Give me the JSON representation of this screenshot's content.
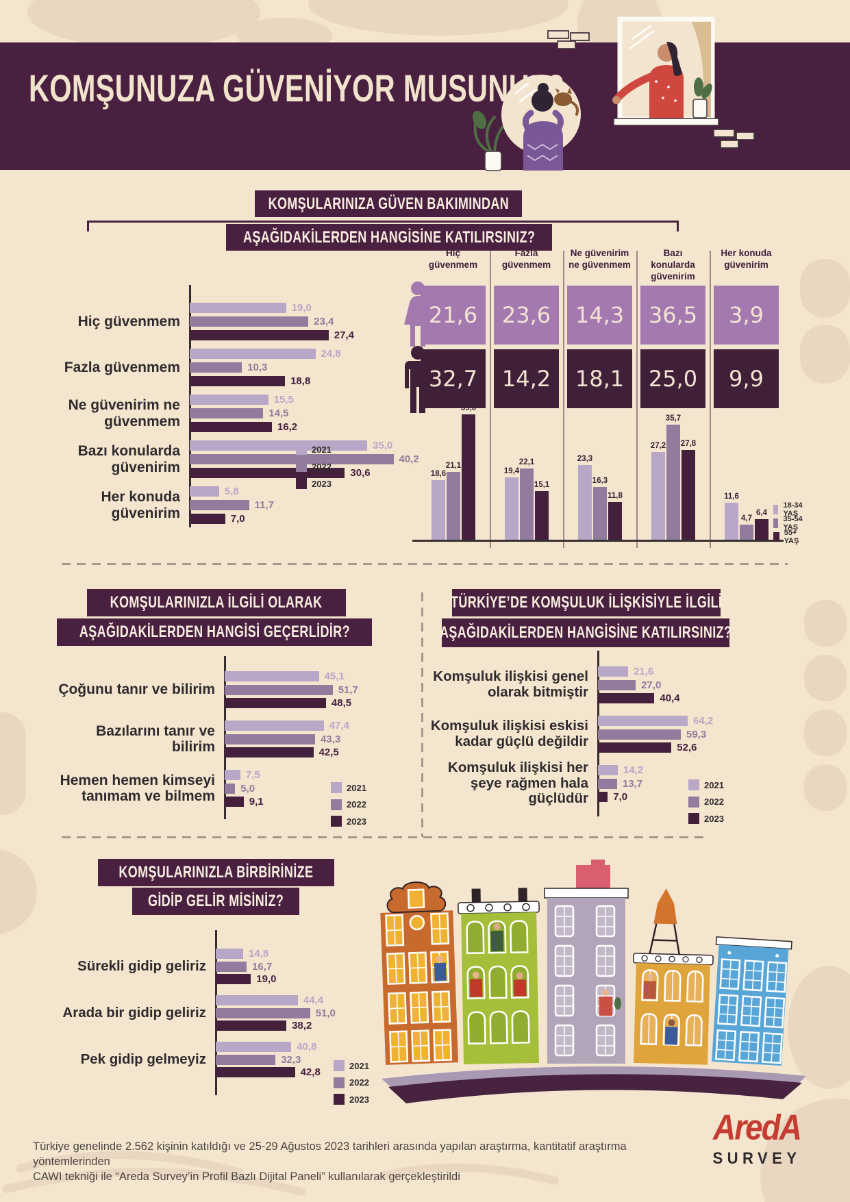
{
  "header": {
    "title": "KOMŞUNUZA GÜVENİYOR MUSUNUZ?"
  },
  "colors": {
    "background": "#f4e5cf",
    "decor_shape": "#e9d7c1",
    "band": "#49203f",
    "series": [
      "#b8a7c7",
      "#927b9c",
      "#44203d"
    ],
    "female": "#a379b0",
    "male": "#402038",
    "cream": "#f2e4d2",
    "text_dark": "#2f2b2d",
    "logo_red": "#c53c31"
  },
  "legend_years": [
    "2021",
    "2022",
    "2023"
  ],
  "age_legend": [
    "18-34 YAŞ",
    "35-54 YAŞ",
    "55+ YAŞ"
  ],
  "gender_rows": [
    "Kadın",
    "Erkek"
  ],
  "chart_data": [
    {
      "id": "trust-by-year",
      "type": "bar",
      "orientation": "horizontal",
      "title_lines": [
        "KOMŞULARINIZA GÜVEN BAKIMINDAN",
        "AŞAĞIDAKİLERDEN HANGİSİNE KATILIRSINIZ?"
      ],
      "categories": [
        "Hiç güvenmem",
        "Fazla güvenmem",
        "Ne güvenirim ne güvenmem",
        "Bazı konularda güvenirim",
        "Her konuda güvenirim"
      ],
      "series": [
        {
          "name": "2021",
          "values": [
            19.0,
            24.8,
            15.5,
            35.0,
            5.8
          ]
        },
        {
          "name": "2022",
          "values": [
            23.4,
            10.3,
            14.5,
            40.2,
            11.7
          ]
        },
        {
          "name": "2023",
          "values": [
            27.4,
            18.8,
            16.2,
            30.6,
            7.0
          ]
        }
      ],
      "unit": "percent",
      "xlim": [
        0,
        45
      ],
      "legend_position": "bottom-right"
    },
    {
      "id": "trust-by-gender",
      "type": "table",
      "columns": [
        "Hiç güvenmem",
        "Fazla güvenmem",
        "Ne güvenirim ne güvenmem",
        "Bazı konularda güvenirim",
        "Her konuda güvenirim"
      ],
      "rows": [
        {
          "label": "Kadın",
          "values": [
            21.6,
            23.6,
            14.3,
            36.5,
            3.9
          ]
        },
        {
          "label": "Erkek",
          "values": [
            32.7,
            14.2,
            18.1,
            25.0,
            9.9
          ]
        }
      ],
      "unit": "percent"
    },
    {
      "id": "trust-by-age",
      "type": "bar",
      "orientation": "vertical",
      "categories": [
        "Hiç güvenmem",
        "Fazla güvenmem",
        "Ne güvenirim ne güvenmem",
        "Bazı konularda güvenirim",
        "Her konuda güvenirim"
      ],
      "series": [
        {
          "name": "18-34 YAŞ",
          "values": [
            18.6,
            19.4,
            23.3,
            27.2,
            11.6
          ]
        },
        {
          "name": "35-54 YAŞ",
          "values": [
            21.1,
            22.1,
            16.3,
            35.7,
            4.7
          ]
        },
        {
          "name": "55+ YAŞ",
          "values": [
            39.0,
            15.1,
            11.8,
            27.8,
            6.4
          ]
        }
      ],
      "unit": "percent",
      "ylim": [
        0,
        45
      ],
      "legend_position": "bottom-right"
    },
    {
      "id": "knowing-neighbors",
      "type": "bar",
      "orientation": "horizontal",
      "title_lines": [
        "KOMŞULARINIZLA İLGİLİ OLARAK",
        "AŞAĞIDAKİLERDEN HANGİSİ GEÇERLİDİR?"
      ],
      "categories": [
        "Çoğunu tanır ve bilirim",
        "Bazılarını tanır ve bilirim",
        "Hemen hemen kimseyi tanımam ve bilmem"
      ],
      "series": [
        {
          "name": "2021",
          "values": [
            45.1,
            47.4,
            7.5
          ]
        },
        {
          "name": "2022",
          "values": [
            51.7,
            43.3,
            5.0
          ]
        },
        {
          "name": "2023",
          "values": [
            48.5,
            42.5,
            9.1
          ]
        }
      ],
      "unit": "percent",
      "xlim": [
        0,
        60
      ],
      "legend_position": "bottom-right"
    },
    {
      "id": "neighborhood-relations",
      "type": "bar",
      "orientation": "horizontal",
      "title_lines": [
        "TÜRKİYE’DE KOMŞULUK İLİŞKİSİYLE İLGİLİ",
        "AŞAĞIDAKİLERDEN HANGİSİNE KATILIRSINIZ?"
      ],
      "categories": [
        "Komşuluk ilişkisi genel olarak bitmiştir",
        "Komşuluk ilişkisi eskisi kadar güçlü değildir",
        "Komşuluk ilişkisi her şeye rağmen hala güçlüdür"
      ],
      "series": [
        {
          "name": "2021",
          "values": [
            21.6,
            64.2,
            14.2
          ]
        },
        {
          "name": "2022",
          "values": [
            27.0,
            59.3,
            13.7
          ]
        },
        {
          "name": "2023",
          "values": [
            40.4,
            52.6,
            7.0
          ]
        }
      ],
      "unit": "percent",
      "xlim": [
        0,
        70
      ],
      "legend_position": "bottom-right"
    },
    {
      "id": "visiting-neighbors",
      "type": "bar",
      "orientation": "horizontal",
      "title_lines": [
        "KOMŞULARINIZLA BİRBİRİNİZE",
        "GİDİP GELİR MİSİNİZ?"
      ],
      "categories": [
        "Sürekli gidip geliriz",
        "Arada bir gidip geliriz",
        "Pek gidip gelmeyiz"
      ],
      "series": [
        {
          "name": "2021",
          "values": [
            14.8,
            44.4,
            40.8
          ]
        },
        {
          "name": "2022",
          "values": [
            16.7,
            51.0,
            32.3
          ]
        },
        {
          "name": "2023",
          "values": [
            19.0,
            38.2,
            42.8
          ]
        }
      ],
      "unit": "percent",
      "xlim": [
        0,
        60
      ],
      "legend_position": "bottom-right"
    }
  ],
  "footer": {
    "line1": "Türkiye genelinde 2.562 kişinin katıldığı ve 25-29 Ağustos 2023 tarihleri arasında yapılan araştırma, kantitatif araştırma yöntemlerinden",
    "line2": "CAWI tekniği ile “Areda Survey’in Profil Bazlı Dijital Paneli” kullanılarak gerçekleştirildi",
    "logo_main": "AredA",
    "logo_sub": "SURVEY"
  }
}
